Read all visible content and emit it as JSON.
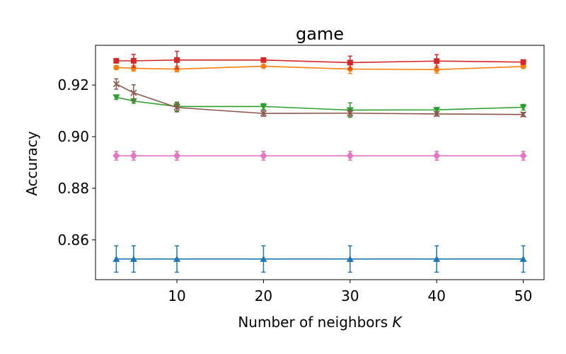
{
  "chart_data": {
    "type": "line",
    "title": "game",
    "xlabel": "Number of neighbors ",
    "xlabel_var": "K",
    "ylabel": "Accuracy",
    "x": [
      3,
      5,
      10,
      20,
      30,
      40,
      50
    ],
    "xticks": [
      10,
      20,
      30,
      40,
      50
    ],
    "yticks": [
      0.86,
      0.88,
      0.9,
      0.92
    ],
    "ytick_labels": [
      "0.86",
      "0.88",
      "0.90",
      "0.92"
    ],
    "xlim": [
      0.6,
      52.4
    ],
    "ylim": [
      0.8446,
      0.9354
    ],
    "grid": false,
    "series": [
      {
        "color": "#1f77b4",
        "marker": "triangle-up",
        "values": [
          0.8526,
          0.8526,
          0.8526,
          0.8526,
          0.8526,
          0.8526,
          0.8526
        ],
        "errors": [
          0.0051,
          0.0051,
          0.0051,
          0.0051,
          0.0051,
          0.0051,
          0.0051
        ]
      },
      {
        "color": "#e377c2",
        "marker": "diamond",
        "values": [
          0.8926,
          0.8926,
          0.8926,
          0.8926,
          0.8926,
          0.8926,
          0.8926
        ],
        "errors": [
          0.0017,
          0.0017,
          0.0017,
          0.0017,
          0.0017,
          0.0017,
          0.0017
        ]
      },
      {
        "color": "#2ca02c",
        "marker": "triangle-down",
        "values": [
          0.9153,
          0.9138,
          0.9117,
          0.9117,
          0.9103,
          0.9104,
          0.9114
        ],
        "errors": [
          0.0008,
          0.0008,
          0.0017,
          0.0011,
          0.0028,
          0.0008,
          0.0011
        ]
      },
      {
        "color": "#8c564b",
        "marker": "x",
        "values": [
          0.9204,
          0.917,
          0.9113,
          0.909,
          0.9091,
          0.9088,
          0.9086
        ],
        "errors": [
          0.002,
          0.0031,
          0.0017,
          0.0011,
          0.0011,
          0.0008,
          0.0008
        ]
      },
      {
        "color": "#ff7f0e",
        "marker": "circle",
        "values": [
          0.9268,
          0.9265,
          0.9262,
          0.9273,
          0.9262,
          0.926,
          0.9272
        ],
        "errors": [
          0.0008,
          0.0011,
          0.0011,
          0.0006,
          0.0017,
          0.0014,
          0.0006
        ]
      },
      {
        "color": "#d62728",
        "marker": "square",
        "values": [
          0.9294,
          0.9294,
          0.9297,
          0.9297,
          0.9287,
          0.9293,
          0.9289
        ],
        "errors": [
          0.0006,
          0.0025,
          0.0034,
          0.0006,
          0.0025,
          0.0025,
          0.0006
        ]
      }
    ]
  }
}
